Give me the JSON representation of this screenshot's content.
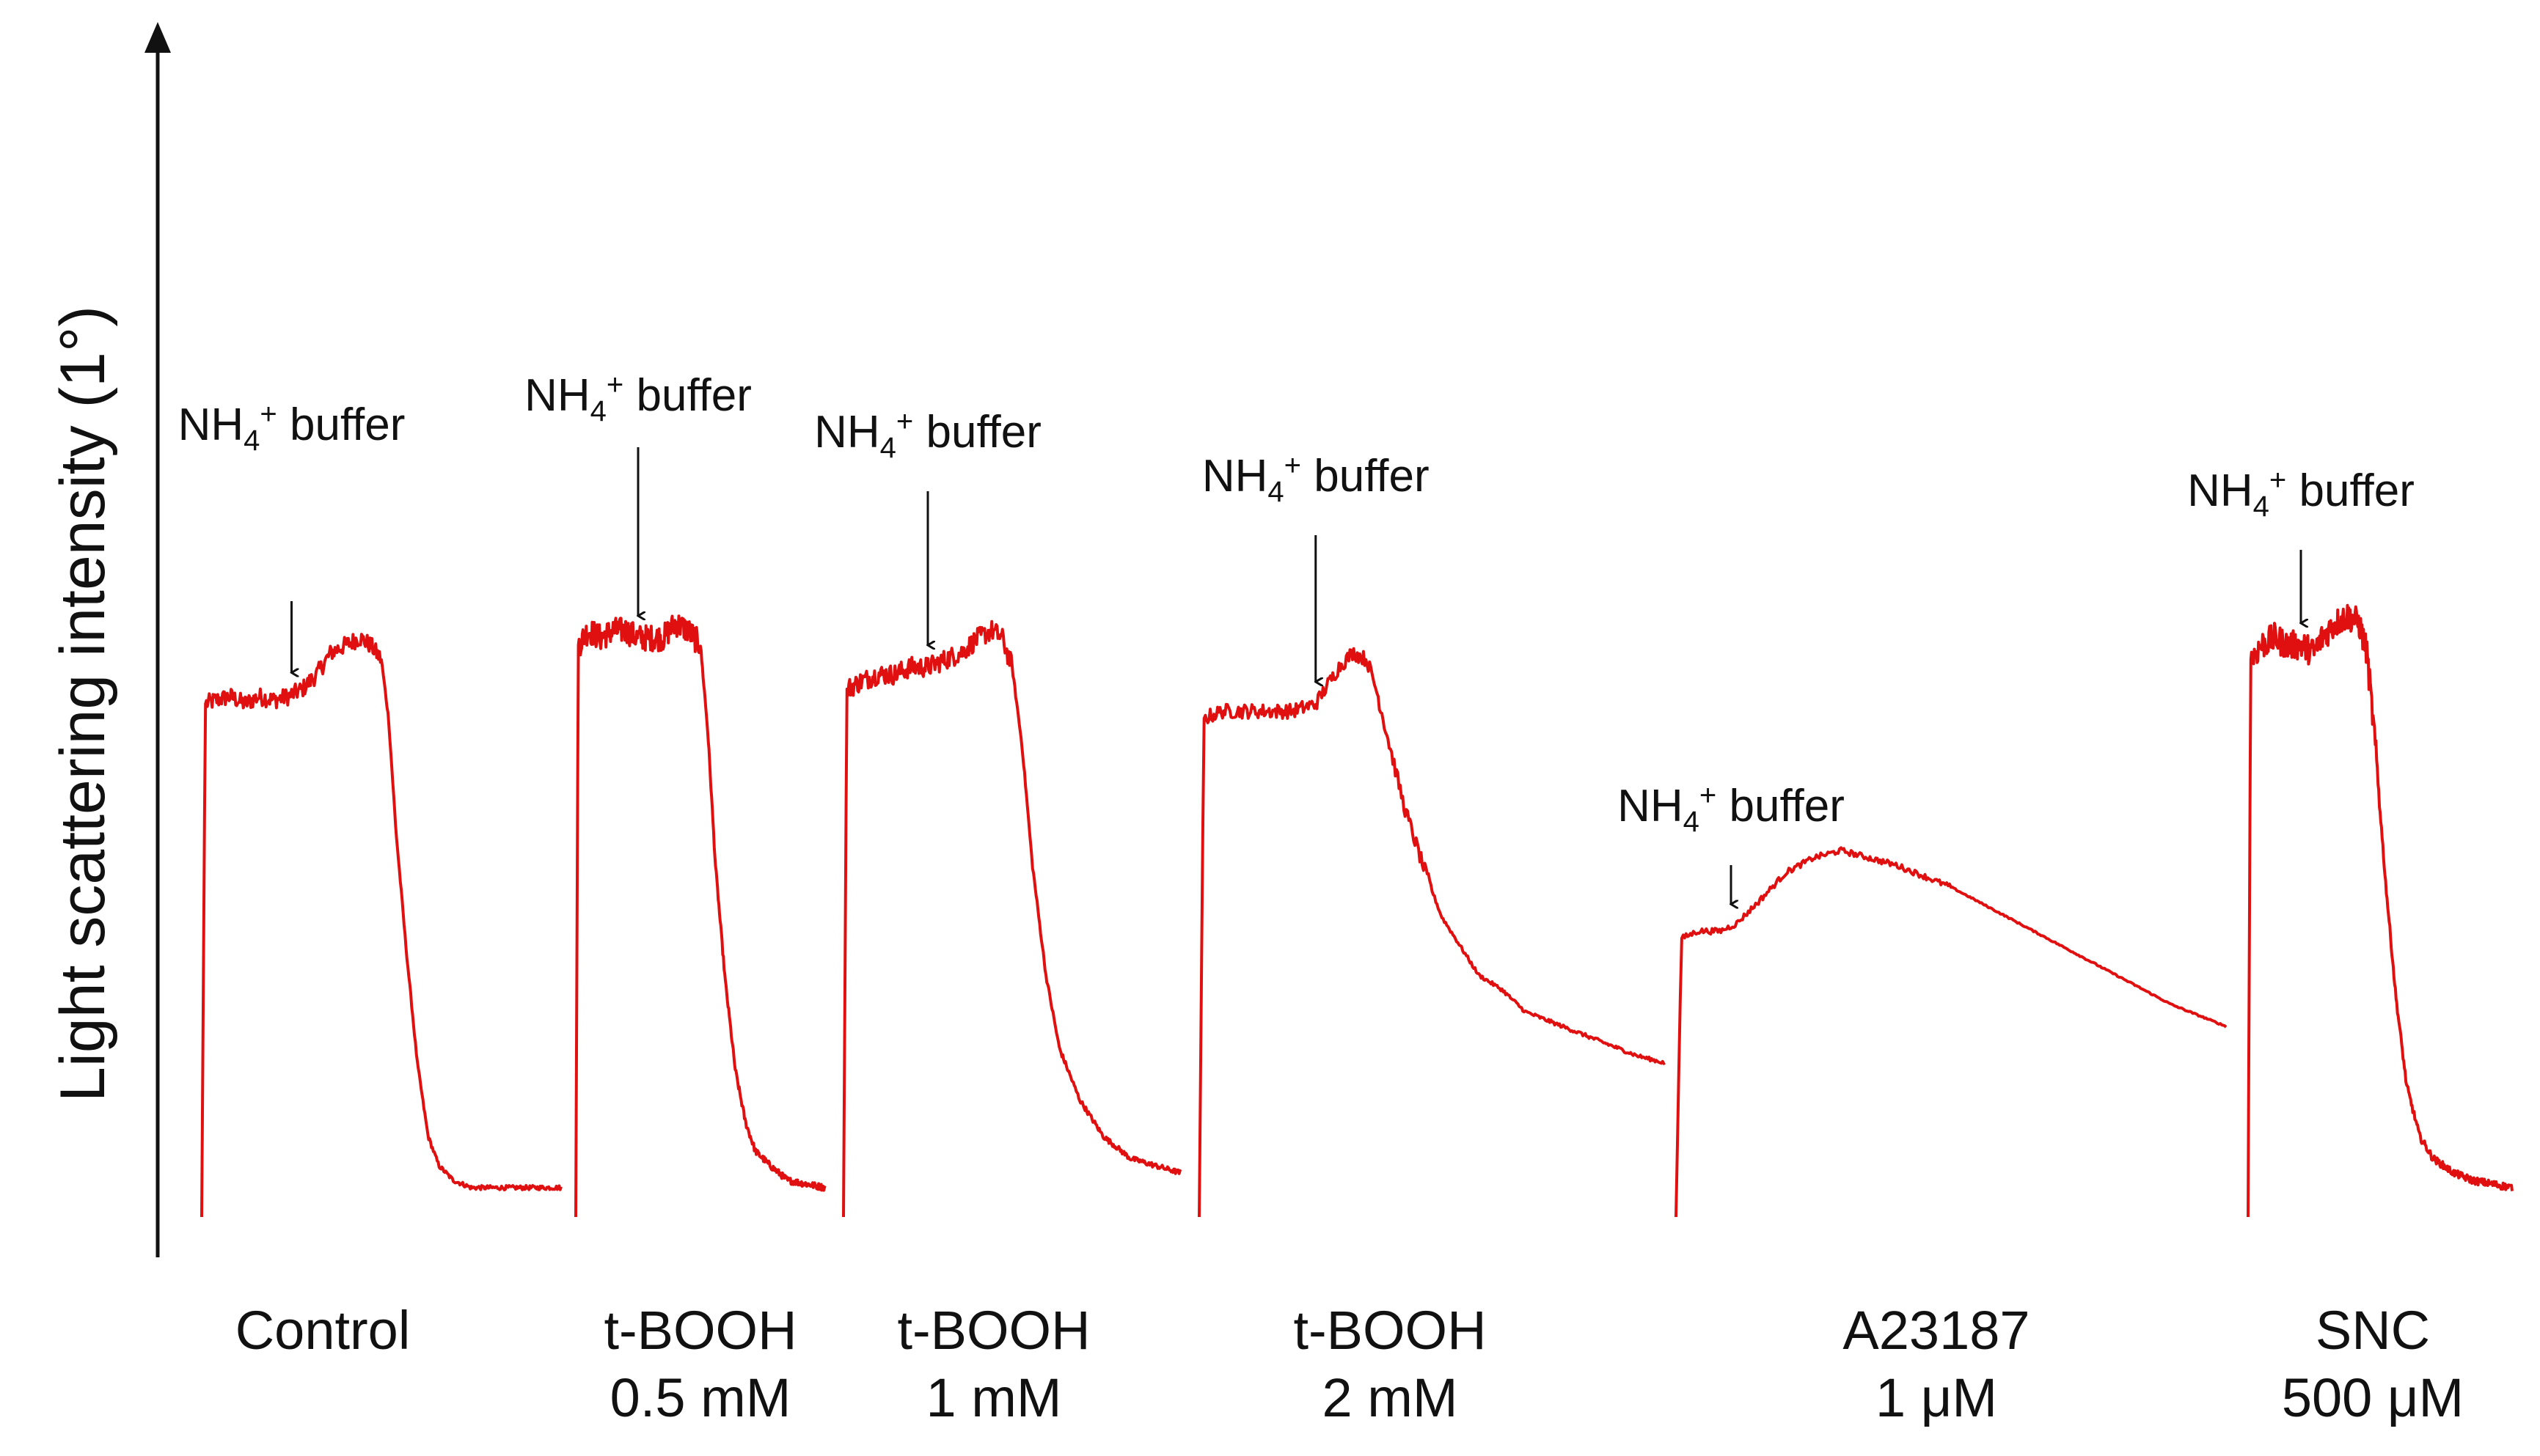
{
  "chart_data": {
    "type": "line",
    "ylabel": "Light scattering intensity (1°)",
    "xlabel": "",
    "annotation_text": "NH4+ buffer",
    "color": "#e01010",
    "series": [
      {
        "name": "Control",
        "condition_lines": [
          "Control"
        ],
        "trace": [
          [
            0.0,
            0.02
          ],
          [
            0.01,
            0.72
          ],
          [
            0.04,
            0.725
          ],
          [
            0.08,
            0.73
          ],
          [
            0.12,
            0.72
          ],
          [
            0.16,
            0.73
          ],
          [
            0.2,
            0.725
          ],
          [
            0.24,
            0.73
          ],
          [
            0.28,
            0.74
          ],
          [
            0.32,
            0.76
          ],
          [
            0.36,
            0.79
          ],
          [
            0.4,
            0.8
          ],
          [
            0.44,
            0.81
          ],
          [
            0.47,
            0.8
          ],
          [
            0.5,
            0.78
          ],
          [
            0.52,
            0.7
          ],
          [
            0.54,
            0.55
          ],
          [
            0.57,
            0.38
          ],
          [
            0.6,
            0.23
          ],
          [
            0.63,
            0.13
          ],
          [
            0.66,
            0.09
          ],
          [
            0.7,
            0.07
          ],
          [
            0.75,
            0.06
          ],
          [
            0.8,
            0.06
          ],
          [
            1.0,
            0.06
          ]
        ],
        "noise": 0.012,
        "arrow_at": 0.25,
        "arrow_top": 0.86,
        "label_height": 1.08
      },
      {
        "name": "t-BOOH 0.5 mM",
        "condition_lines": [
          "t-BOOH",
          "0.5 mM"
        ],
        "trace": [
          [
            0.0,
            0.02
          ],
          [
            0.01,
            0.8
          ],
          [
            0.05,
            0.82
          ],
          [
            0.1,
            0.81
          ],
          [
            0.15,
            0.82
          ],
          [
            0.2,
            0.82
          ],
          [
            0.25,
            0.81
          ],
          [
            0.3,
            0.81
          ],
          [
            0.35,
            0.81
          ],
          [
            0.4,
            0.83
          ],
          [
            0.45,
            0.82
          ],
          [
            0.5,
            0.8
          ],
          [
            0.53,
            0.68
          ],
          [
            0.56,
            0.5
          ],
          [
            0.6,
            0.34
          ],
          [
            0.64,
            0.22
          ],
          [
            0.68,
            0.15
          ],
          [
            0.72,
            0.11
          ],
          [
            0.78,
            0.09
          ],
          [
            0.85,
            0.07
          ],
          [
            1.0,
            0.06
          ]
        ],
        "noise": 0.018,
        "arrow_at": 0.25,
        "arrow_top": 1.07,
        "label_height": 1.12
      },
      {
        "name": "t-BOOH 1 mM",
        "condition_lines": [
          "t-BOOH",
          "1 mM"
        ],
        "trace": [
          [
            0.0,
            0.02
          ],
          [
            0.01,
            0.74
          ],
          [
            0.05,
            0.75
          ],
          [
            0.1,
            0.76
          ],
          [
            0.15,
            0.76
          ],
          [
            0.2,
            0.77
          ],
          [
            0.25,
            0.77
          ],
          [
            0.3,
            0.78
          ],
          [
            0.35,
            0.79
          ],
          [
            0.4,
            0.81
          ],
          [
            0.44,
            0.82
          ],
          [
            0.47,
            0.81
          ],
          [
            0.5,
            0.77
          ],
          [
            0.53,
            0.66
          ],
          [
            0.56,
            0.5
          ],
          [
            0.6,
            0.35
          ],
          [
            0.64,
            0.25
          ],
          [
            0.7,
            0.18
          ],
          [
            0.77,
            0.13
          ],
          [
            0.85,
            0.1
          ],
          [
            1.0,
            0.08
          ]
        ],
        "noise": 0.014,
        "arrow_at": 0.25,
        "arrow_top": 1.01,
        "label_height": 1.07
      },
      {
        "name": "t-BOOH 2 mM",
        "condition_lines": [
          "t-BOOH",
          "2 mM"
        ],
        "trace": [
          [
            0.0,
            0.02
          ],
          [
            0.01,
            0.7
          ],
          [
            0.05,
            0.71
          ],
          [
            0.1,
            0.71
          ],
          [
            0.15,
            0.71
          ],
          [
            0.2,
            0.71
          ],
          [
            0.25,
            0.72
          ],
          [
            0.27,
            0.74
          ],
          [
            0.3,
            0.77
          ],
          [
            0.33,
            0.79
          ],
          [
            0.36,
            0.78
          ],
          [
            0.38,
            0.74
          ],
          [
            0.41,
            0.66
          ],
          [
            0.44,
            0.58
          ],
          [
            0.48,
            0.5
          ],
          [
            0.52,
            0.43
          ],
          [
            0.56,
            0.39
          ],
          [
            0.6,
            0.35
          ],
          [
            0.65,
            0.33
          ],
          [
            0.7,
            0.3
          ],
          [
            0.78,
            0.28
          ],
          [
            0.86,
            0.26
          ],
          [
            0.94,
            0.24
          ],
          [
            1.0,
            0.23
          ]
        ],
        "noise": 0.01,
        "arrow_at": 0.25,
        "arrow_top": 0.95,
        "label_height": 1.01
      },
      {
        "name": "A23187 1 μM",
        "condition_lines": [
          "A23187",
          "1 μM"
        ],
        "trace": [
          [
            0.0,
            0.02
          ],
          [
            0.01,
            0.4
          ],
          [
            0.04,
            0.41
          ],
          [
            0.08,
            0.41
          ],
          [
            0.11,
            0.42
          ],
          [
            0.15,
            0.45
          ],
          [
            0.2,
            0.49
          ],
          [
            0.25,
            0.51
          ],
          [
            0.3,
            0.52
          ],
          [
            0.35,
            0.51
          ],
          [
            0.4,
            0.5
          ],
          [
            0.5,
            0.47
          ],
          [
            0.6,
            0.43
          ],
          [
            0.7,
            0.39
          ],
          [
            0.8,
            0.35
          ],
          [
            0.9,
            0.31
          ],
          [
            1.0,
            0.28
          ]
        ],
        "noise": 0.004,
        "arrow_at": 0.1,
        "arrow_top": 0.5,
        "label_height": 0.56
      },
      {
        "name": "SNC 500 μM",
        "condition_lines": [
          "SNC",
          "500 μM"
        ],
        "trace": [
          [
            0.0,
            0.02
          ],
          [
            0.01,
            0.78
          ],
          [
            0.05,
            0.8
          ],
          [
            0.1,
            0.81
          ],
          [
            0.15,
            0.8
          ],
          [
            0.2,
            0.8
          ],
          [
            0.25,
            0.79
          ],
          [
            0.28,
            0.81
          ],
          [
            0.33,
            0.83
          ],
          [
            0.38,
            0.84
          ],
          [
            0.42,
            0.83
          ],
          [
            0.45,
            0.79
          ],
          [
            0.48,
            0.67
          ],
          [
            0.52,
            0.48
          ],
          [
            0.56,
            0.32
          ],
          [
            0.6,
            0.2
          ],
          [
            0.65,
            0.13
          ],
          [
            0.7,
            0.1
          ],
          [
            0.78,
            0.08
          ],
          [
            0.85,
            0.07
          ],
          [
            1.0,
            0.06
          ]
        ],
        "noise": 0.02,
        "arrow_at": 0.2,
        "arrow_top": 0.93,
        "label_height": 0.99
      }
    ]
  }
}
